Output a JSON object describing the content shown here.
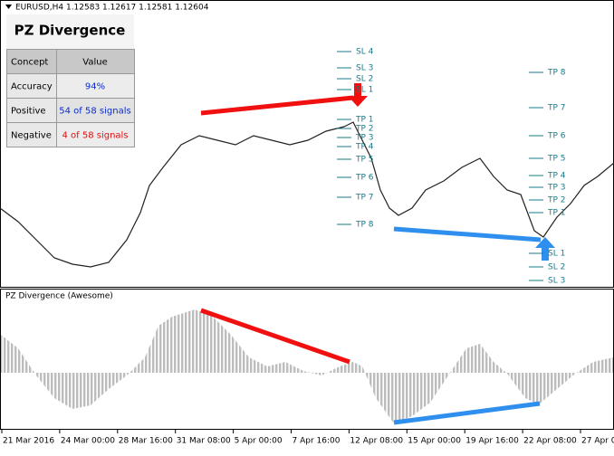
{
  "header": {
    "symbol_line": "EURUSD,H4  1.12583 1.12617 1.12581 1.12604"
  },
  "panel": {
    "title": "PZ Divergence",
    "table": {
      "header": [
        "Concept",
        "Value"
      ],
      "rows": [
        [
          "Accuracy",
          "94%"
        ],
        [
          "Positive",
          "54 of 58 signals"
        ],
        [
          "Negative",
          "4 of 58 signals"
        ]
      ]
    }
  },
  "levels": {
    "left": [
      "SL 4",
      "SL 3",
      "SL 2",
      "SL 1",
      "TP 1",
      "TP 2",
      "TP 3",
      "TP 4",
      "TP 5",
      "TP 6",
      "TP 7",
      "TP 8"
    ],
    "right": [
      "TP 8",
      "TP 7",
      "TP 6",
      "TP 5",
      "TP 4",
      "TP 3",
      "TP 2",
      "TP 1",
      "SL 1",
      "SL 2",
      "SL 3"
    ]
  },
  "indicator": {
    "title": "PZ Divergence (Awesome)"
  },
  "x_axis": {
    "labels": [
      "21 Mar 2016",
      "24 Mar 00:00",
      "28 Mar 16:00",
      "31 Mar 08:00",
      "5 Apr 00:00",
      "7 Apr 16:00",
      "12 Apr 08:00",
      "15 Apr 00:00",
      "19 Apr 16:00",
      "22 Apr 08:00",
      "27 Apr 0"
    ]
  }
}
